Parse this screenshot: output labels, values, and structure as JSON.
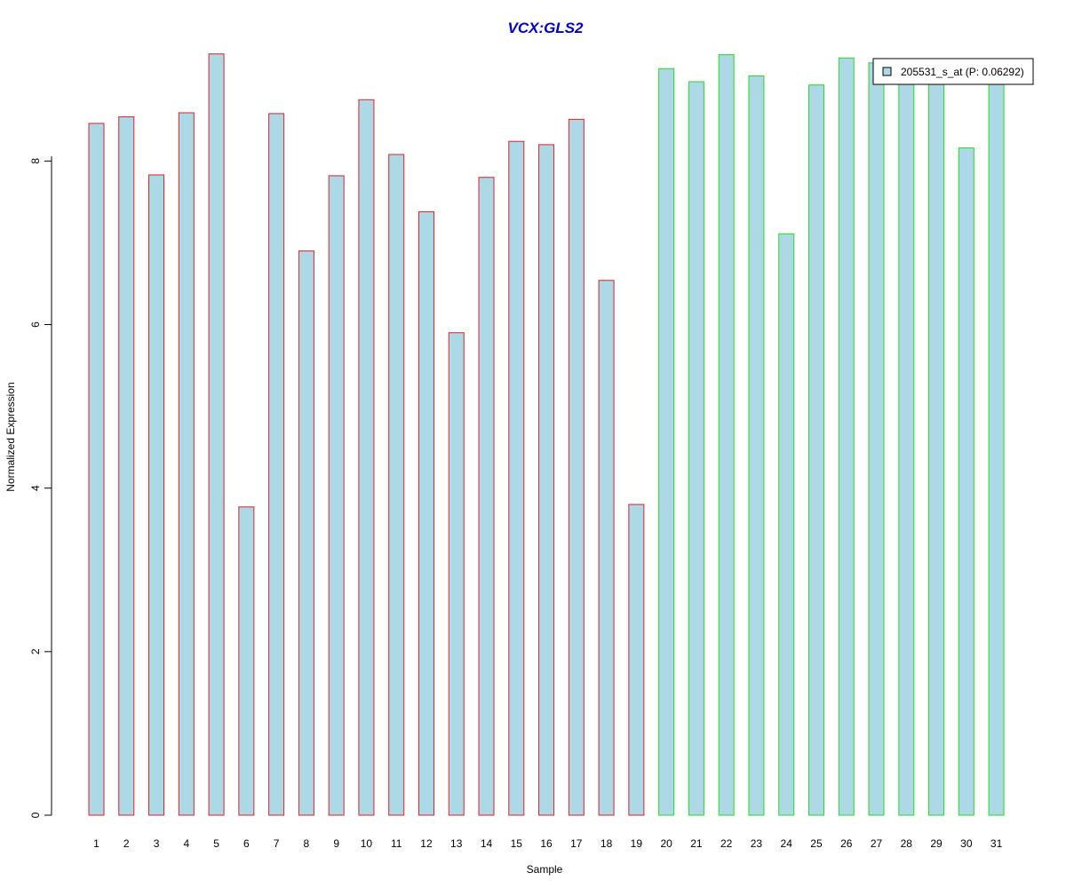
{
  "chart_data": {
    "type": "bar",
    "title": "VCX:GLS2",
    "xlabel": "Sample",
    "ylabel": "Normalized Expression",
    "ylim": [
      0,
      9.4
    ],
    "yticks": [
      "0",
      "2",
      "4",
      "6",
      "8"
    ],
    "grid": false,
    "legend_position": "top-right",
    "categories": [
      "1",
      "2",
      "3",
      "4",
      "5",
      "6",
      "7",
      "8",
      "9",
      "10",
      "11",
      "12",
      "13",
      "14",
      "15",
      "16",
      "17",
      "18",
      "19",
      "20",
      "21",
      "22",
      "23",
      "24",
      "25",
      "26",
      "27",
      "28",
      "29",
      "30",
      "31"
    ],
    "series": [
      {
        "name": "205531_s_at (P: 0.06292)",
        "values": [
          8.46,
          8.54,
          7.83,
          8.59,
          9.31,
          3.77,
          8.58,
          6.9,
          7.82,
          8.75,
          8.08,
          7.38,
          5.9,
          7.8,
          8.24,
          8.2,
          8.51,
          6.54,
          3.8,
          9.13,
          8.97,
          9.3,
          9.04,
          7.11,
          8.93,
          9.26,
          9.2,
          9.0,
          8.95,
          8.16,
          9.05
        ]
      }
    ],
    "groups": [
      {
        "samples": [
          "1",
          "2",
          "3",
          "4",
          "5",
          "6",
          "7",
          "8",
          "9",
          "10",
          "11",
          "12",
          "13",
          "14",
          "15",
          "16",
          "17",
          "18",
          "19"
        ],
        "border_color": "#dd2222"
      },
      {
        "samples": [
          "20",
          "21",
          "22",
          "23",
          "24",
          "25",
          "26",
          "27",
          "28",
          "29",
          "30",
          "31"
        ],
        "border_color": "#22dd22"
      }
    ],
    "bar_fill": "#add8e6",
    "title_color": "#0000cc"
  }
}
